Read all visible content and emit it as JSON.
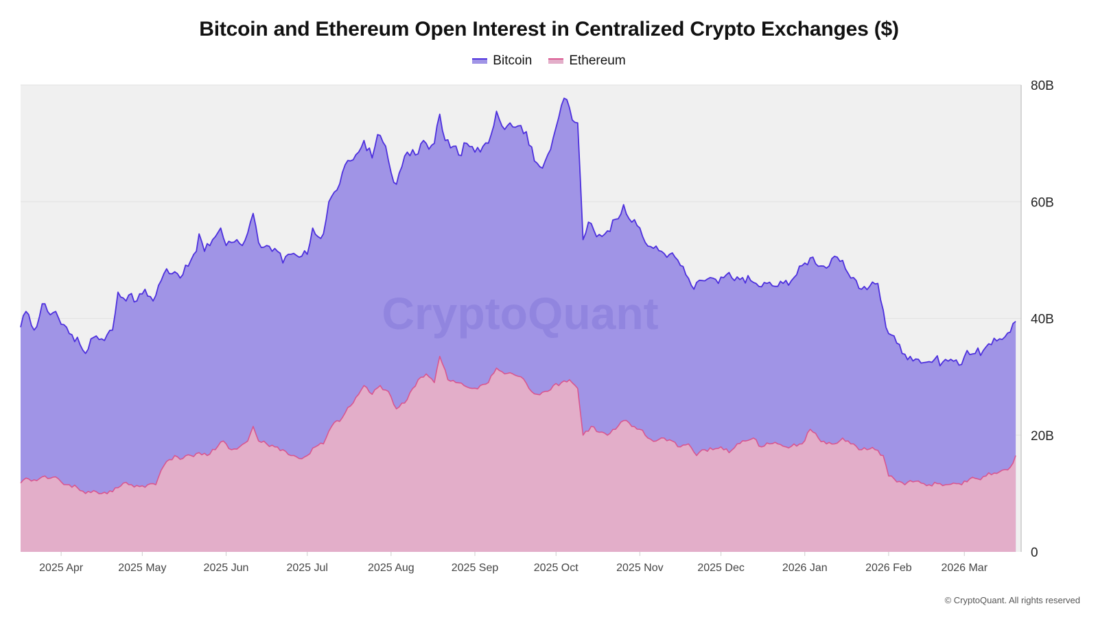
{
  "colors": {
    "plot_background": "#f0f0f0",
    "bitcoin_line": "#4c2fdd",
    "bitcoin_fill": "#a094e6",
    "ethereum_line": "#d9568f",
    "ethereum_fill": "#e3aec9"
  },
  "watermark": "CryptoQuant",
  "copyright": "© CryptoQuant. All rights reserved",
  "chart_data": {
    "type": "area",
    "title": "Bitcoin and Ethereum Open Interest in Centralized Crypto Exchanges ($)",
    "xlabel": "",
    "ylabel": "",
    "xlim": [
      "2025-03-17",
      "2026-03-22"
    ],
    "ylim": [
      0,
      80
    ],
    "y_unit": "B",
    "y_ticks": [
      0,
      20,
      40,
      60,
      80
    ],
    "y_tick_labels": [
      "0",
      "20B",
      "40B",
      "60B",
      "80B"
    ],
    "x_ticks": [
      "2025-04-01",
      "2025-05-01",
      "2025-06-01",
      "2025-07-01",
      "2025-08-01",
      "2025-09-01",
      "2025-10-01",
      "2025-11-01",
      "2025-12-01",
      "2026-01-01",
      "2026-02-01",
      "2026-03-01"
    ],
    "x_tick_labels": [
      "2025 Apr",
      "2025 May",
      "2025 Jun",
      "2025 Jul",
      "2025 Aug",
      "2025 Sep",
      "2025 Oct",
      "2025 Nov",
      "2025 Dec",
      "2026 Jan",
      "2026 Feb",
      "2026 Mar"
    ],
    "y_axis_position": "right",
    "grid": true,
    "legend_position": "top-center",
    "series": [
      {
        "name": "Bitcoin",
        "points": [
          [
            "2025-03-17",
            38.5
          ],
          [
            "2025-03-19",
            41.2
          ],
          [
            "2025-03-21",
            38.8
          ],
          [
            "2025-03-23",
            38.6
          ],
          [
            "2025-03-25",
            42.5
          ],
          [
            "2025-03-27",
            41.2
          ],
          [
            "2025-03-30",
            41.2
          ],
          [
            "2025-04-01",
            39.0
          ],
          [
            "2025-04-03",
            38.5
          ],
          [
            "2025-04-05",
            37.2
          ],
          [
            "2025-04-08",
            35.5
          ],
          [
            "2025-04-10",
            34.0
          ],
          [
            "2025-04-12",
            36.5
          ],
          [
            "2025-04-14",
            37.0
          ],
          [
            "2025-04-16",
            36.5
          ],
          [
            "2025-04-18",
            37.2
          ],
          [
            "2025-04-20",
            38.0
          ],
          [
            "2025-04-22",
            44.5
          ],
          [
            "2025-04-24",
            43.5
          ],
          [
            "2025-04-26",
            44.0
          ],
          [
            "2025-04-29",
            43.0
          ],
          [
            "2025-05-02",
            45.0
          ],
          [
            "2025-05-05",
            43.0
          ],
          [
            "2025-05-08",
            46.5
          ],
          [
            "2025-05-10",
            48.5
          ],
          [
            "2025-05-13",
            48.0
          ],
          [
            "2025-05-16",
            47.5
          ],
          [
            "2025-05-19",
            50.0
          ],
          [
            "2025-05-21",
            51.5
          ],
          [
            "2025-05-22",
            54.5
          ],
          [
            "2025-05-24",
            51.5
          ],
          [
            "2025-05-27",
            53.5
          ],
          [
            "2025-05-30",
            55.5
          ],
          [
            "2025-06-01",
            52.5
          ],
          [
            "2025-06-03",
            53.0
          ],
          [
            "2025-06-05",
            53.5
          ],
          [
            "2025-06-07",
            52.5
          ],
          [
            "2025-06-10",
            56.5
          ],
          [
            "2025-06-11",
            58.0
          ],
          [
            "2025-06-13",
            53.0
          ],
          [
            "2025-06-16",
            52.5
          ],
          [
            "2025-06-18",
            51.5
          ],
          [
            "2025-06-20",
            51.5
          ],
          [
            "2025-06-22",
            49.5
          ],
          [
            "2025-06-25",
            51.0
          ],
          [
            "2025-06-28",
            50.5
          ],
          [
            "2025-07-01",
            51.0
          ],
          [
            "2025-07-03",
            55.5
          ],
          [
            "2025-07-05",
            54.0
          ],
          [
            "2025-07-07",
            54.5
          ],
          [
            "2025-07-09",
            60.0
          ],
          [
            "2025-07-12",
            62.0
          ],
          [
            "2025-07-14",
            65.0
          ],
          [
            "2025-07-17",
            67.0
          ],
          [
            "2025-07-20",
            68.5
          ],
          [
            "2025-07-22",
            70.5
          ],
          [
            "2025-07-25",
            67.5
          ],
          [
            "2025-07-27",
            71.5
          ],
          [
            "2025-07-30",
            69.5
          ],
          [
            "2025-08-01",
            65.0
          ],
          [
            "2025-08-03",
            63.0
          ],
          [
            "2025-08-05",
            66.0
          ],
          [
            "2025-08-07",
            68.5
          ],
          [
            "2025-08-10",
            68.0
          ],
          [
            "2025-08-13",
            70.5
          ],
          [
            "2025-08-15",
            69.0
          ],
          [
            "2025-08-17",
            70.0
          ],
          [
            "2025-08-19",
            75.0
          ],
          [
            "2025-08-21",
            70.5
          ],
          [
            "2025-08-24",
            69.5
          ],
          [
            "2025-08-26",
            68.0
          ],
          [
            "2025-08-29",
            70.0
          ],
          [
            "2025-09-01",
            68.5
          ],
          [
            "2025-09-04",
            69.5
          ],
          [
            "2025-09-07",
            71.5
          ],
          [
            "2025-09-09",
            75.5
          ],
          [
            "2025-09-11",
            73.0
          ],
          [
            "2025-09-14",
            73.5
          ],
          [
            "2025-09-17",
            73.0
          ],
          [
            "2025-09-20",
            72.0
          ],
          [
            "2025-09-23",
            67.0
          ],
          [
            "2025-09-25",
            66.0
          ],
          [
            "2025-09-27",
            67.0
          ],
          [
            "2025-09-30",
            71.0
          ],
          [
            "2025-10-03",
            76.5
          ],
          [
            "2025-10-05",
            77.5
          ],
          [
            "2025-10-07",
            74.0
          ],
          [
            "2025-10-09",
            73.5
          ],
          [
            "2025-10-11",
            53.5
          ],
          [
            "2025-10-13",
            56.5
          ],
          [
            "2025-10-16",
            54.0
          ],
          [
            "2025-10-20",
            55.0
          ],
          [
            "2025-10-23",
            57.0
          ],
          [
            "2025-10-26",
            59.5
          ],
          [
            "2025-10-29",
            56.5
          ],
          [
            "2025-11-01",
            55.5
          ],
          [
            "2025-11-03",
            53.0
          ],
          [
            "2025-11-06",
            52.0
          ],
          [
            "2025-11-09",
            51.5
          ],
          [
            "2025-11-12",
            51.0
          ],
          [
            "2025-11-15",
            50.0
          ],
          [
            "2025-11-18",
            47.5
          ],
          [
            "2025-11-21",
            45.0
          ],
          [
            "2025-11-24",
            46.5
          ],
          [
            "2025-11-27",
            47.0
          ],
          [
            "2025-11-30",
            46.0
          ],
          [
            "2025-12-03",
            47.5
          ],
          [
            "2025-12-06",
            46.5
          ],
          [
            "2025-12-09",
            47.0
          ],
          [
            "2025-12-12",
            46.5
          ],
          [
            "2025-12-15",
            45.5
          ],
          [
            "2025-12-18",
            46.0
          ],
          [
            "2025-12-21",
            45.5
          ],
          [
            "2025-12-24",
            46.0
          ],
          [
            "2025-12-28",
            47.0
          ],
          [
            "2026-01-01",
            49.5
          ],
          [
            "2026-01-04",
            50.5
          ],
          [
            "2026-01-07",
            49.0
          ],
          [
            "2026-01-10",
            49.0
          ],
          [
            "2026-01-13",
            50.5
          ],
          [
            "2026-01-16",
            48.5
          ],
          [
            "2026-01-19",
            47.0
          ],
          [
            "2026-01-22",
            45.0
          ],
          [
            "2026-01-25",
            45.5
          ],
          [
            "2026-01-28",
            46.0
          ],
          [
            "2026-01-31",
            38.5
          ],
          [
            "2026-02-03",
            37.0
          ],
          [
            "2026-02-06",
            34.0
          ],
          [
            "2026-02-09",
            33.5
          ],
          [
            "2026-02-12",
            33.0
          ],
          [
            "2026-02-15",
            32.5
          ],
          [
            "2026-02-18",
            33.0
          ],
          [
            "2026-02-21",
            32.5
          ],
          [
            "2026-02-24",
            33.0
          ],
          [
            "2026-02-27",
            32.0
          ],
          [
            "2026-03-02",
            34.5
          ],
          [
            "2026-03-05",
            34.0
          ],
          [
            "2026-03-08",
            34.5
          ],
          [
            "2026-03-11",
            35.5
          ],
          [
            "2026-03-14",
            36.5
          ],
          [
            "2026-03-17",
            37.5
          ],
          [
            "2026-03-20",
            39.5
          ]
        ]
      },
      {
        "name": "Ethereum",
        "points": [
          [
            "2025-03-17",
            11.8
          ],
          [
            "2025-03-20",
            12.5
          ],
          [
            "2025-03-23",
            12.2
          ],
          [
            "2025-03-26",
            13.0
          ],
          [
            "2025-03-29",
            12.8
          ],
          [
            "2025-04-01",
            12.0
          ],
          [
            "2025-04-04",
            11.5
          ],
          [
            "2025-04-07",
            11.0
          ],
          [
            "2025-04-10",
            10.0
          ],
          [
            "2025-04-13",
            10.5
          ],
          [
            "2025-04-16",
            10.0
          ],
          [
            "2025-04-20",
            10.3
          ],
          [
            "2025-04-22",
            11.0
          ],
          [
            "2025-04-24",
            11.8
          ],
          [
            "2025-04-27",
            11.5
          ],
          [
            "2025-04-30",
            11.2
          ],
          [
            "2025-05-03",
            11.5
          ],
          [
            "2025-05-06",
            11.5
          ],
          [
            "2025-05-08",
            14.0
          ],
          [
            "2025-05-10",
            15.5
          ],
          [
            "2025-05-13",
            16.5
          ],
          [
            "2025-05-16",
            16.0
          ],
          [
            "2025-05-19",
            16.5
          ],
          [
            "2025-05-22",
            17.0
          ],
          [
            "2025-05-25",
            16.5
          ],
          [
            "2025-05-28",
            17.5
          ],
          [
            "2025-05-31",
            19.0
          ],
          [
            "2025-06-03",
            17.5
          ],
          [
            "2025-06-06",
            18.0
          ],
          [
            "2025-06-09",
            19.0
          ],
          [
            "2025-06-11",
            21.5
          ],
          [
            "2025-06-13",
            19.0
          ],
          [
            "2025-06-16",
            18.5
          ],
          [
            "2025-06-19",
            18.0
          ],
          [
            "2025-06-22",
            17.5
          ],
          [
            "2025-06-25",
            16.5
          ],
          [
            "2025-06-28",
            16.0
          ],
          [
            "2025-07-01",
            16.5
          ],
          [
            "2025-07-04",
            18.0
          ],
          [
            "2025-07-07",
            18.5
          ],
          [
            "2025-07-10",
            21.5
          ],
          [
            "2025-07-14",
            23.0
          ],
          [
            "2025-07-17",
            25.0
          ],
          [
            "2025-07-20",
            27.0
          ],
          [
            "2025-07-22",
            28.5
          ],
          [
            "2025-07-25",
            27.0
          ],
          [
            "2025-07-28",
            28.5
          ],
          [
            "2025-07-31",
            27.5
          ],
          [
            "2025-08-03",
            24.5
          ],
          [
            "2025-08-06",
            25.5
          ],
          [
            "2025-08-09",
            28.0
          ],
          [
            "2025-08-11",
            29.5
          ],
          [
            "2025-08-14",
            30.5
          ],
          [
            "2025-08-17",
            29.0
          ],
          [
            "2025-08-19",
            33.5
          ],
          [
            "2025-08-22",
            29.5
          ],
          [
            "2025-08-25",
            29.0
          ],
          [
            "2025-08-28",
            28.5
          ],
          [
            "2025-08-31",
            28.0
          ],
          [
            "2025-09-03",
            28.5
          ],
          [
            "2025-09-06",
            29.0
          ],
          [
            "2025-09-09",
            31.5
          ],
          [
            "2025-09-12",
            30.5
          ],
          [
            "2025-09-15",
            30.5
          ],
          [
            "2025-09-18",
            30.0
          ],
          [
            "2025-09-21",
            28.0
          ],
          [
            "2025-09-24",
            27.0
          ],
          [
            "2025-09-27",
            27.5
          ],
          [
            "2025-09-30",
            28.5
          ],
          [
            "2025-10-03",
            29.0
          ],
          [
            "2025-10-06",
            29.5
          ],
          [
            "2025-10-09",
            28.0
          ],
          [
            "2025-10-11",
            20.0
          ],
          [
            "2025-10-14",
            21.5
          ],
          [
            "2025-10-17",
            20.5
          ],
          [
            "2025-10-20",
            20.0
          ],
          [
            "2025-10-23",
            21.0
          ],
          [
            "2025-10-26",
            22.5
          ],
          [
            "2025-10-29",
            21.5
          ],
          [
            "2025-11-01",
            21.0
          ],
          [
            "2025-11-04",
            19.5
          ],
          [
            "2025-11-07",
            19.0
          ],
          [
            "2025-11-10",
            19.5
          ],
          [
            "2025-11-13",
            19.0
          ],
          [
            "2025-11-16",
            18.0
          ],
          [
            "2025-11-19",
            18.5
          ],
          [
            "2025-11-22",
            16.5
          ],
          [
            "2025-11-25",
            17.5
          ],
          [
            "2025-11-28",
            17.5
          ],
          [
            "2025-12-01",
            18.0
          ],
          [
            "2025-12-04",
            17.0
          ],
          [
            "2025-12-07",
            18.5
          ],
          [
            "2025-12-10",
            19.0
          ],
          [
            "2025-12-13",
            19.5
          ],
          [
            "2025-12-16",
            18.0
          ],
          [
            "2025-12-19",
            18.5
          ],
          [
            "2025-12-22",
            18.5
          ],
          [
            "2025-12-25",
            18.0
          ],
          [
            "2025-12-28",
            18.5
          ],
          [
            "2025-12-31",
            18.5
          ],
          [
            "2026-01-03",
            21.0
          ],
          [
            "2026-01-06",
            19.5
          ],
          [
            "2026-01-09",
            18.5
          ],
          [
            "2026-01-12",
            18.5
          ],
          [
            "2026-01-15",
            19.5
          ],
          [
            "2026-01-18",
            18.5
          ],
          [
            "2026-01-21",
            17.5
          ],
          [
            "2026-01-24",
            17.5
          ],
          [
            "2026-01-27",
            17.5
          ],
          [
            "2026-01-30",
            16.5
          ],
          [
            "2026-02-01",
            13.0
          ],
          [
            "2026-02-04",
            12.0
          ],
          [
            "2026-02-07",
            11.5
          ],
          [
            "2026-02-10",
            12.0
          ],
          [
            "2026-02-13",
            11.8
          ],
          [
            "2026-02-16",
            11.5
          ],
          [
            "2026-02-19",
            11.7
          ],
          [
            "2026-02-22",
            11.5
          ],
          [
            "2026-02-25",
            11.8
          ],
          [
            "2026-02-28",
            11.5
          ],
          [
            "2026-03-03",
            12.5
          ],
          [
            "2026-03-06",
            12.5
          ],
          [
            "2026-03-09",
            13.0
          ],
          [
            "2026-03-12",
            13.5
          ],
          [
            "2026-03-15",
            14.0
          ],
          [
            "2026-03-18",
            14.5
          ],
          [
            "2026-03-20",
            16.5
          ]
        ]
      }
    ]
  }
}
